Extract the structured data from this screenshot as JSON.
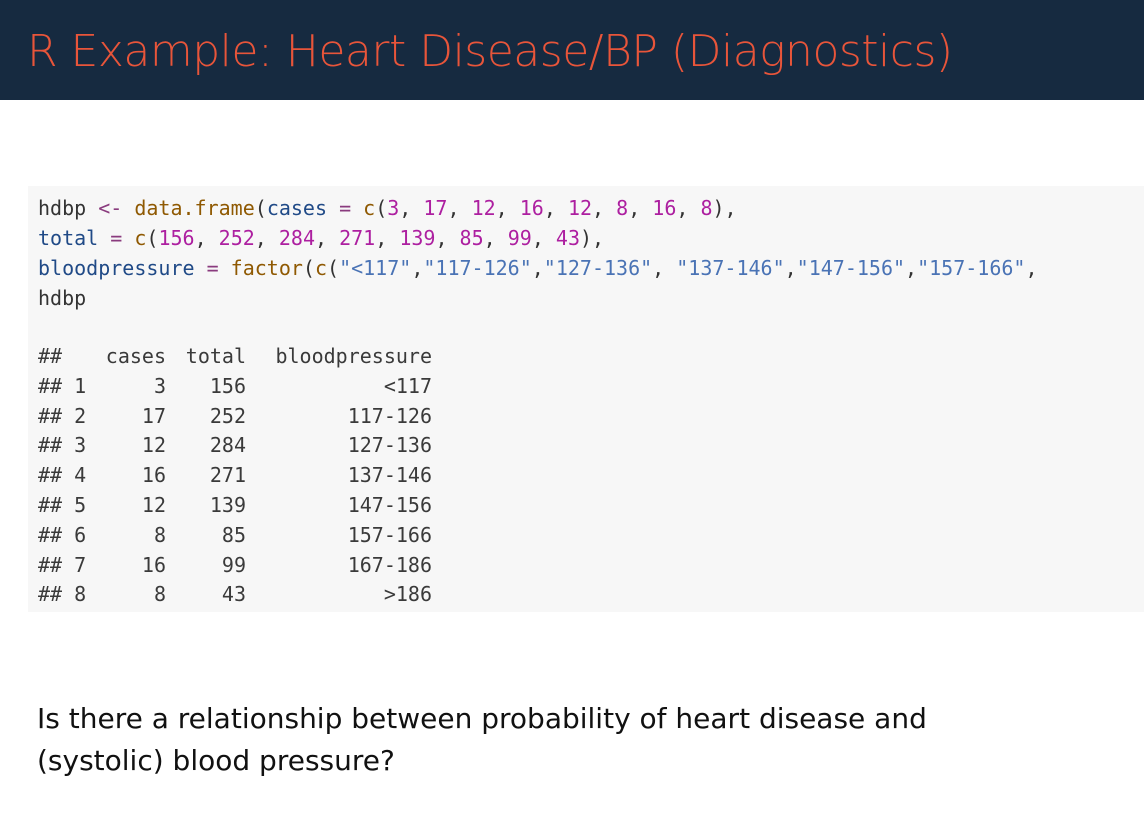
{
  "slide": {
    "title": "R Example: Heart Disease/BP (Diagnostics)",
    "question": "Is there a relationship between probability of heart disease and (systolic) blood pressure?"
  },
  "code": {
    "line1": {
      "var": "hdbp",
      "assign": " <- ",
      "fn": "data.frame",
      "open": "(",
      "arg": "cases",
      "eq": " = ",
      "c_fn": "c",
      "c_open": "(",
      "values": [
        "3",
        "17",
        "12",
        "16",
        "12",
        "8",
        "16",
        "8"
      ],
      "close": "),"
    },
    "line2": {
      "arg": "total",
      "eq": " = ",
      "c_fn": "c",
      "c_open": "(",
      "values": [
        "156",
        "252",
        "284",
        "271",
        "139",
        "85",
        "99",
        "43"
      ],
      "close": "),"
    },
    "line3": {
      "arg": "bloodpressure",
      "eq": " = ",
      "fn": "factor",
      "open": "(",
      "c_fn": "c",
      "c_open": "(",
      "strings": [
        "\"<117\"",
        "\"117-126\"",
        "\"127-136\"",
        " \"137-146\"",
        "\"147-156\"",
        "\"157-166\""
      ],
      "trail": ","
    },
    "line4": "hdbp"
  },
  "output": {
    "prefix": "##",
    "headers": [
      "cases",
      "total",
      "bloodpressure"
    ],
    "rows": [
      {
        "n": "1",
        "cases": "3",
        "total": "156",
        "bp": "<117"
      },
      {
        "n": "2",
        "cases": "17",
        "total": "252",
        "bp": "117-126"
      },
      {
        "n": "3",
        "cases": "12",
        "total": "284",
        "bp": "127-136"
      },
      {
        "n": "4",
        "cases": "16",
        "total": "271",
        "bp": "137-146"
      },
      {
        "n": "5",
        "cases": "12",
        "total": "139",
        "bp": "147-156"
      },
      {
        "n": "6",
        "cases": "8",
        "total": "85",
        "bp": "157-166"
      },
      {
        "n": "7",
        "cases": "16",
        "total": "99",
        "bp": "167-186"
      },
      {
        "n": "8",
        "cases": "8",
        "total": "43",
        "bp": ">186"
      }
    ]
  }
}
